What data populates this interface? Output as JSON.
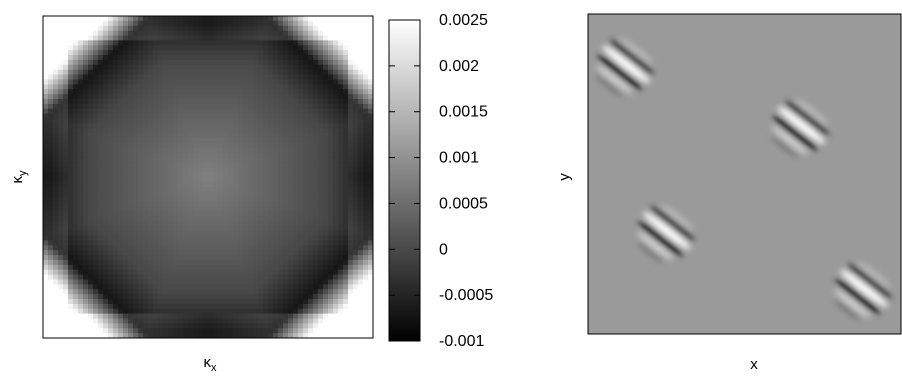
{
  "chart_data": [
    {
      "type": "heatmap",
      "xlabel": "κ",
      "xlabel_sub": "x",
      "ylabel": "κ",
      "ylabel_sub": "y",
      "colorbar": {
        "min": -0.001,
        "max": 0.0025,
        "ticks": [
          {
            "value": 0.0025,
            "label": "0.0025"
          },
          {
            "value": 0.002,
            "label": "0.002"
          },
          {
            "value": 0.0015,
            "label": "0.0015"
          },
          {
            "value": 0.001,
            "label": "0.001"
          },
          {
            "value": 0.0005,
            "label": "0.0005"
          },
          {
            "value": 0,
            "label": "0"
          },
          {
            "value": -0.0005,
            "label": "-0.0005"
          },
          {
            "value": -0.001,
            "label": "-0.001"
          }
        ],
        "colormap": [
          "#000000",
          "#ffffff"
        ]
      },
      "grid": false,
      "description_of_pattern": "octagonal dark band; dark at edge midpoints, light at corners, mid-gray center"
    },
    {
      "type": "heatmap",
      "xlabel": "x",
      "ylabel": "y",
      "grid": false,
      "background_color": "#9a9a9a",
      "features": [
        {
          "cx": 0.12,
          "cy": 0.16
        },
        {
          "cx": 0.68,
          "cy": 0.35
        },
        {
          "cx": 0.25,
          "cy": 0.68
        },
        {
          "cx": 0.88,
          "cy": 0.86
        }
      ]
    }
  ]
}
